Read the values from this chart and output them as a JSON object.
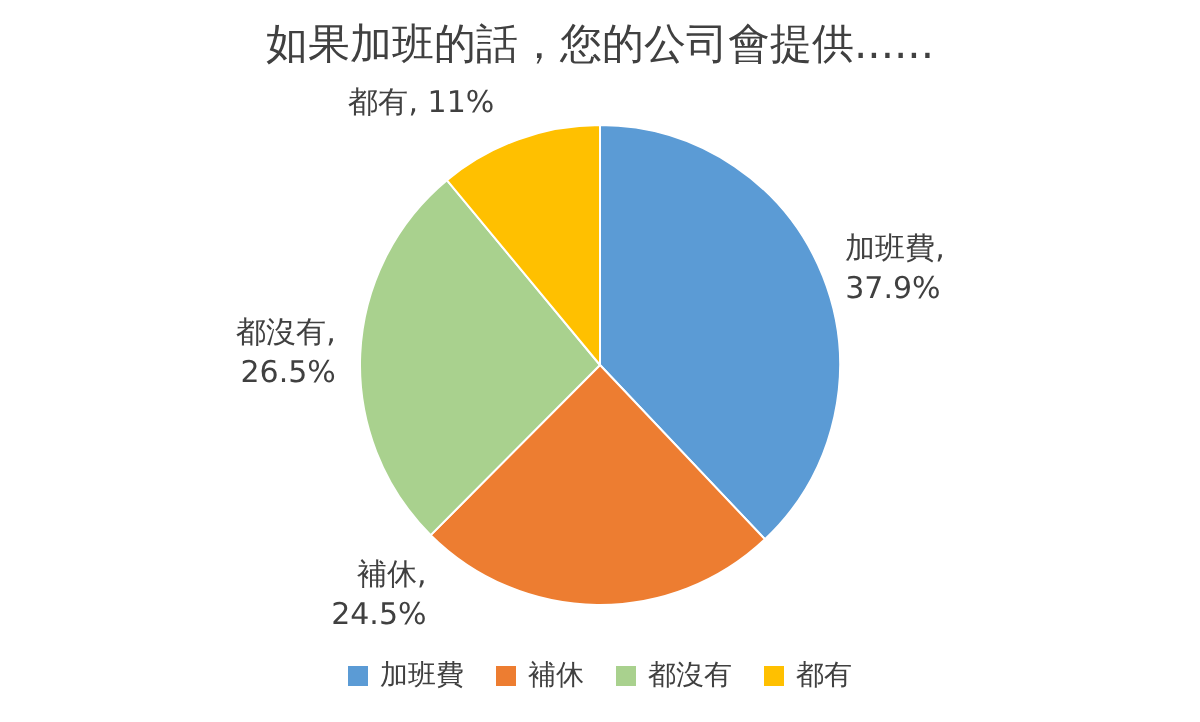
{
  "chart_data": {
    "type": "pie",
    "title": "如果加班的話，您的公司會提供......",
    "categories": [
      "加班費",
      "補休",
      "都沒有",
      "都有"
    ],
    "values": [
      37.9,
      24.5,
      26.5,
      11
    ],
    "colors": [
      "#5b9bd5",
      "#ed7d31",
      "#a9d18e",
      "#ffc000"
    ],
    "value_labels": [
      "加班費, 37.9%",
      "補休, 24.5%",
      "都沒有, 26.5%",
      "都有, 11%"
    ],
    "legend": "bottom"
  }
}
